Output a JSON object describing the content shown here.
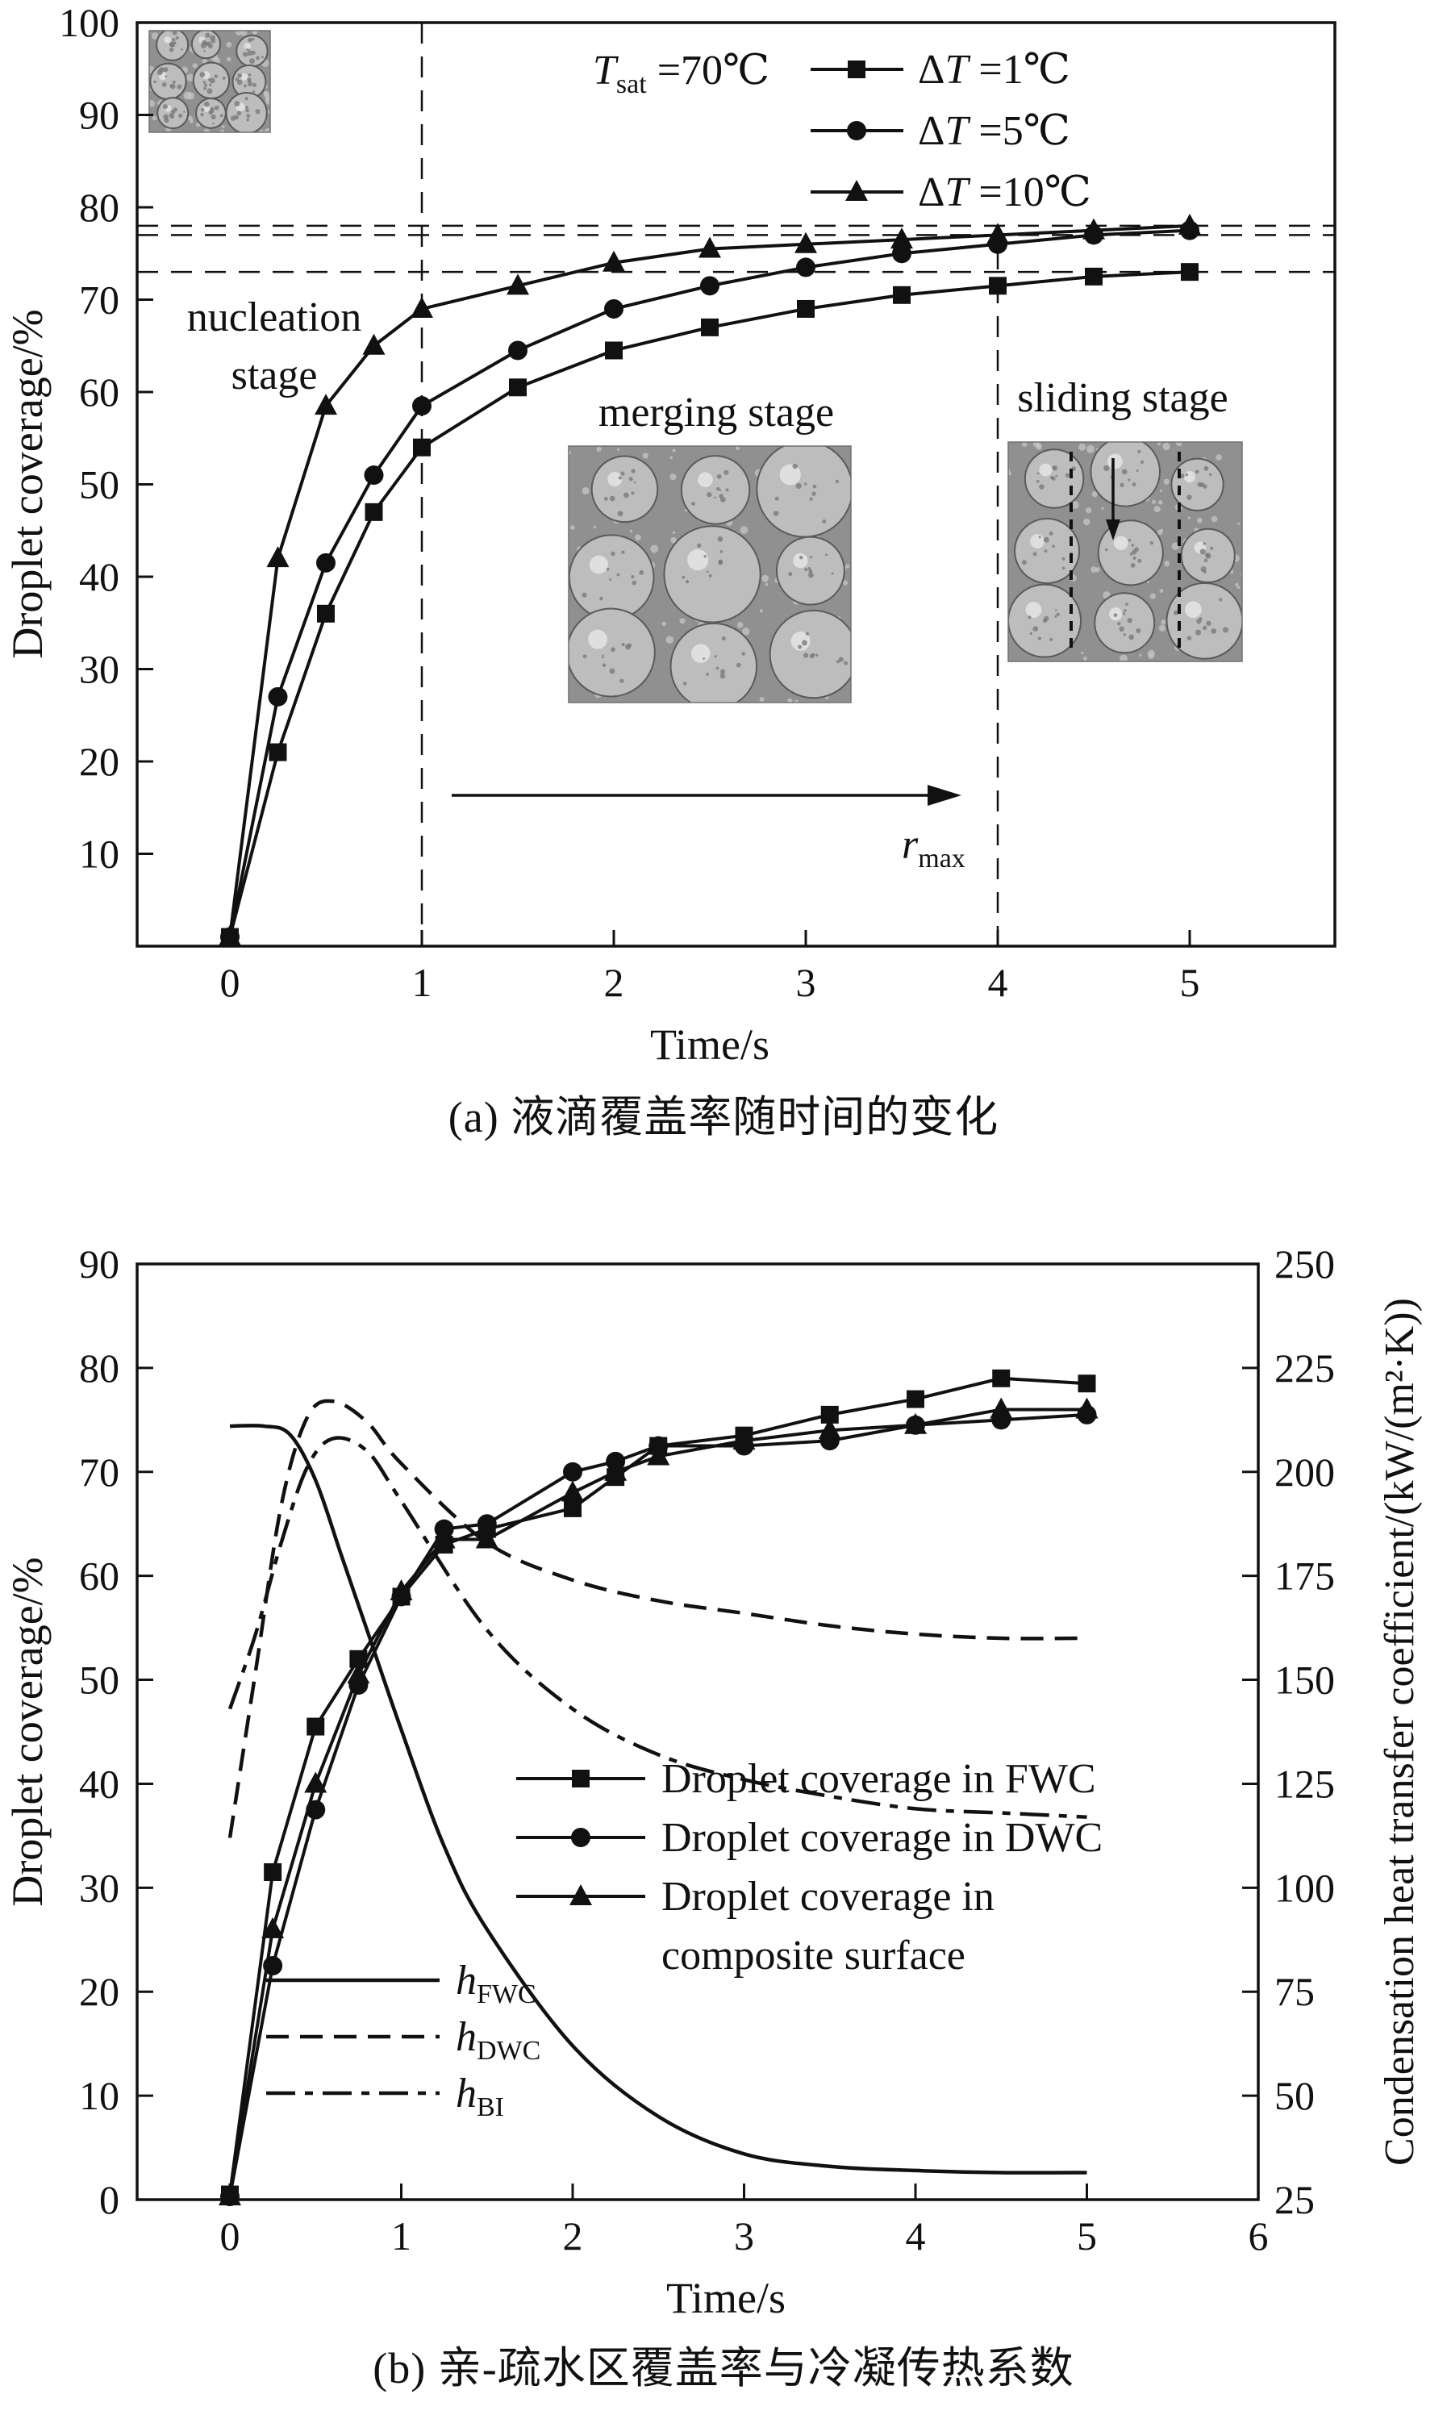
{
  "page": {
    "background": "#ffffff",
    "ink": "#111111"
  },
  "chart_data": [
    {
      "id": "a",
      "type": "line",
      "caption": "(a) 液滴覆盖率随时间的变化",
      "xlabel": "Time/s",
      "ylabel": "Droplet coverage/%",
      "xlim": [
        0,
        5.75
      ],
      "ylim": [
        0,
        100
      ],
      "x_ticks": [
        0,
        1,
        2,
        3,
        4,
        5
      ],
      "y_ticks": [
        10,
        20,
        30,
        40,
        50,
        60,
        70,
        80,
        90,
        100
      ],
      "grid": false,
      "legend_position": "top-right",
      "tsat": {
        "var": "T",
        "sub": "sat",
        "rest": " =70℃"
      },
      "rmax": {
        "var": "r",
        "sub": "max"
      },
      "stage_labels": {
        "nucleation": [
          "nucleation",
          "stage"
        ],
        "merging": "merging stage",
        "sliding": "sliding stage"
      },
      "h_guides": [
        73,
        77,
        78
      ],
      "v_guides": [
        1,
        4
      ],
      "series": [
        {
          "name": "ΔT =1℃",
          "marker": "square",
          "x": [
            0,
            0.25,
            0.5,
            0.75,
            1,
            1.5,
            2,
            2.5,
            3,
            3.5,
            4,
            4.5,
            5
          ],
          "y": [
            1,
            21,
            36,
            47,
            54,
            60.5,
            64.5,
            67,
            69,
            70.5,
            71.5,
            72.5,
            73
          ]
        },
        {
          "name": "ΔT =5℃",
          "marker": "circle",
          "x": [
            0,
            0.25,
            0.5,
            0.75,
            1,
            1.5,
            2,
            2.5,
            3,
            3.5,
            4,
            4.5,
            5
          ],
          "y": [
            1,
            27,
            41.5,
            51,
            58.5,
            64.5,
            69,
            71.5,
            73.5,
            75,
            76,
            77,
            77.5
          ]
        },
        {
          "name": "ΔT =10℃",
          "marker": "triangle",
          "x": [
            0,
            0.25,
            0.5,
            0.75,
            1,
            1.5,
            2,
            2.5,
            3,
            3.5,
            4,
            4.5,
            5
          ],
          "y": [
            1,
            42,
            58.5,
            65,
            69,
            71.5,
            74,
            75.5,
            76,
            76.5,
            77,
            77.5,
            78
          ]
        }
      ],
      "insets": [
        "nucleation-photo",
        "merging-photo",
        "sliding-photo"
      ]
    },
    {
      "id": "b",
      "type": "line",
      "caption": "(b) 亲-疏水区覆盖率与冷凝传热系数",
      "xlabel": "Time/s",
      "ylabel_left": "Droplet coverage/%",
      "ylabel_right": "Condensation heat transfer coefficient/(kW/(m²·K))",
      "xlim": [
        0,
        6
      ],
      "ylim_left": [
        0,
        90
      ],
      "ylim_right": [
        25,
        250
      ],
      "x_ticks": [
        0,
        1,
        2,
        3,
        4,
        5,
        6
      ],
      "y_ticks_left": [
        0,
        10,
        20,
        30,
        40,
        50,
        60,
        70,
        80,
        90
      ],
      "y_ticks_right": [
        25,
        50,
        75,
        100,
        125,
        150,
        175,
        200,
        225,
        250
      ],
      "series_left": [
        {
          "name": "Droplet coverage in FWC",
          "marker": "square",
          "x": [
            0,
            0.25,
            0.5,
            0.75,
            1,
            1.25,
            1.5,
            2,
            2.25,
            2.5,
            3,
            3.5,
            4,
            4.5,
            5
          ],
          "y": [
            0.5,
            31.5,
            45.5,
            52,
            58,
            63,
            64.5,
            66.5,
            69.5,
            72.5,
            73.5,
            75.5,
            77,
            79,
            78.5
          ]
        },
        {
          "name": "Droplet coverage in DWC",
          "marker": "circle",
          "x": [
            0,
            0.25,
            0.5,
            0.75,
            1,
            1.25,
            1.5,
            2,
            2.25,
            2.5,
            3,
            3.5,
            4,
            4.5,
            5
          ],
          "y": [
            0.3,
            22.5,
            37.5,
            49.5,
            58,
            64.5,
            65,
            70,
            71,
            72.5,
            72.5,
            73,
            74.5,
            75,
            75.5
          ]
        },
        {
          "name": "Droplet coverage in composite surface",
          "marker": "triangle",
          "x": [
            0,
            0.25,
            0.5,
            0.75,
            1,
            1.25,
            1.5,
            2,
            2.25,
            2.5,
            3,
            3.5,
            4,
            4.5,
            5
          ],
          "y": [
            0.3,
            26,
            40,
            50.5,
            58.5,
            63.5,
            63.5,
            68,
            70,
            71.5,
            73,
            74,
            74.5,
            76,
            76
          ]
        }
      ],
      "series_right": [
        {
          "name": "h_FWC",
          "var": "h",
          "sub": "FWC",
          "style": "solid",
          "x": [
            0,
            0.2,
            0.35,
            0.5,
            0.65,
            0.8,
            1,
            1.25,
            1.5,
            2,
            2.5,
            3,
            3.5,
            4,
            4.5,
            5
          ],
          "y": [
            211,
            211,
            209,
            198,
            180,
            162,
            138,
            110,
            90,
            62,
            45,
            36,
            33,
            32,
            31.5,
            31.5
          ]
        },
        {
          "name": "h_DWC",
          "var": "h",
          "sub": "DWC",
          "style": "dashed",
          "x": [
            0,
            0.15,
            0.3,
            0.45,
            0.6,
            0.8,
            1,
            1.5,
            2,
            2.5,
            3,
            3.5,
            4,
            4.5,
            5
          ],
          "y": [
            112,
            152,
            192,
            213,
            217,
            212,
            202,
            183,
            174,
            169,
            166,
            163,
            161,
            160,
            160
          ]
        },
        {
          "name": "h_BI",
          "var": "h",
          "sub": "BI",
          "style": "dashdot",
          "x": [
            0,
            0.15,
            0.3,
            0.45,
            0.6,
            0.8,
            1,
            1.5,
            2,
            2.5,
            3,
            3.5,
            4,
            4.5,
            5
          ],
          "y": [
            143,
            161,
            183,
            201,
            208,
            205,
            193,
            162,
            143,
            132,
            126,
            122,
            119,
            118,
            117
          ]
        }
      ],
      "legend_markers": [
        {
          "marker": "square",
          "lines": [
            "Droplet coverage in FWC"
          ]
        },
        {
          "marker": "circle",
          "lines": [
            "Droplet coverage in DWC"
          ]
        },
        {
          "marker": "triangle",
          "lines": [
            "Droplet coverage in",
            "composite surface"
          ]
        }
      ]
    }
  ]
}
